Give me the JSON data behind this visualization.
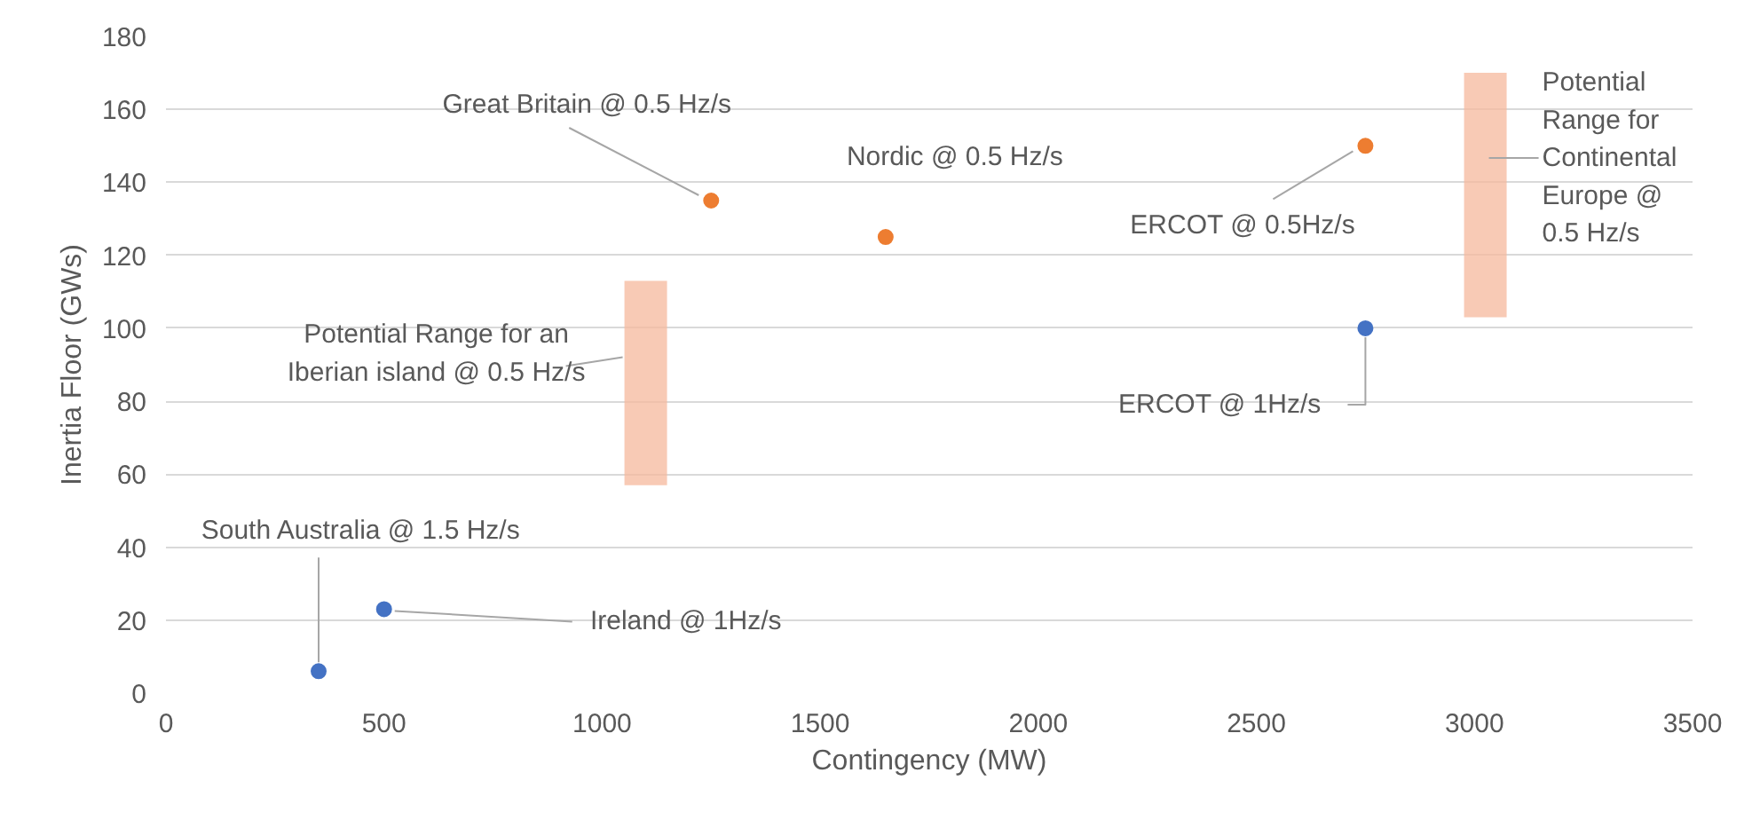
{
  "chart_data": {
    "type": "scatter",
    "xlabel": "Contingency (MW)",
    "ylabel": "Inertia Floor (GWs)",
    "xlim": [
      0,
      3500
    ],
    "xticks": [
      0,
      500,
      1000,
      1500,
      2000,
      2500,
      3000,
      3500
    ],
    "ylim": [
      0,
      180
    ],
    "yticks": [
      0,
      20,
      40,
      60,
      80,
      100,
      120,
      140,
      160,
      180
    ],
    "grid": "y",
    "marker": "circle",
    "series": [
      {
        "color": "#4472c4",
        "x": [
          350,
          500,
          2750
        ],
        "values": [
          6,
          23,
          100
        ]
      },
      {
        "color": "#ed7d31",
        "x": [
          1250,
          1650,
          2750
        ],
        "values": [
          135,
          125,
          150
        ]
      },
      {
        "type": "bar",
        "color": "#f6b89c",
        "x": [
          1100,
          3025
        ],
        "base": [
          57,
          103
        ],
        "values": [
          56,
          67
        ]
      }
    ],
    "annotations": [
      {
        "text": "South Australia @ 1.5 Hz/s",
        "x": 350,
        "y": 6
      },
      {
        "text": "Ireland @ 1Hz/s",
        "x": 500,
        "y": 23
      },
      {
        "text": "Potential Range for an\nIberian island @ 0.5 Hz/s",
        "x": 1100,
        "y": 113
      },
      {
        "text": "Great Britain @ 0.5 Hz/s",
        "x": 1250,
        "y": 135
      },
      {
        "text": "Nordic @ 0.5 Hz/s",
        "x": 1650,
        "y": 125
      },
      {
        "text": "ERCOT  @ 0.5Hz/s",
        "x": 2750,
        "y": 150
      },
      {
        "text": "ERCOT @ 1Hz/s",
        "x": 2750,
        "y": 100
      },
      {
        "text": "Potential\nRange for\nContinental\nEurope @\n0.5 Hz/s",
        "x": 3025,
        "y": 170
      }
    ]
  }
}
